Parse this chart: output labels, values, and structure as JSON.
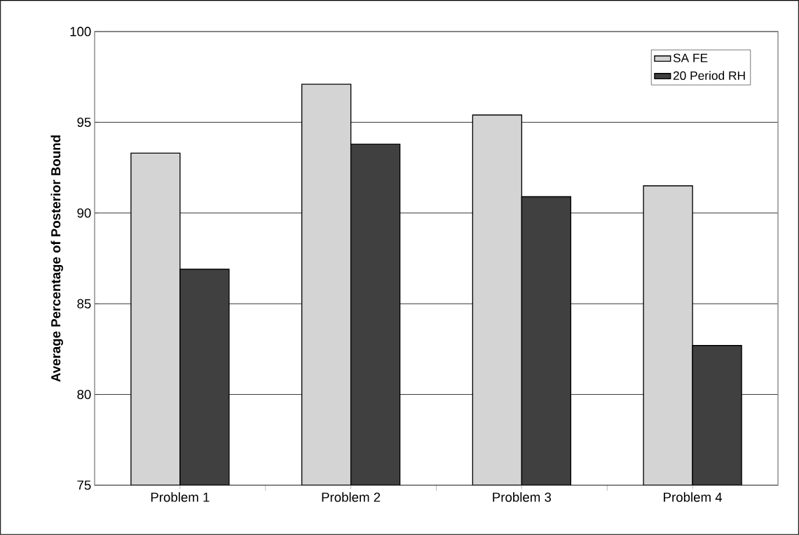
{
  "chart_data": {
    "type": "bar",
    "ylabel": "**Average Percentage of Posterior Bound**",
    "categories": [
      "Problem 1",
      "Problem 2",
      "Problem 3",
      "Problem 4"
    ],
    "series": [
      {
        "name": "SA FE",
        "color": "#d4d4d4",
        "values": [
          93.3,
          97.1,
          95.4,
          91.5
        ]
      },
      {
        "name": "20 Period RH",
        "color": "#404040",
        "values": [
          86.9,
          93.8,
          90.9,
          82.7
        ]
      }
    ],
    "ylim": [
      75,
      100
    ],
    "yticks": [
      75,
      80,
      85,
      90,
      95,
      100
    ],
    "grid": "y",
    "legend": "top right"
  }
}
